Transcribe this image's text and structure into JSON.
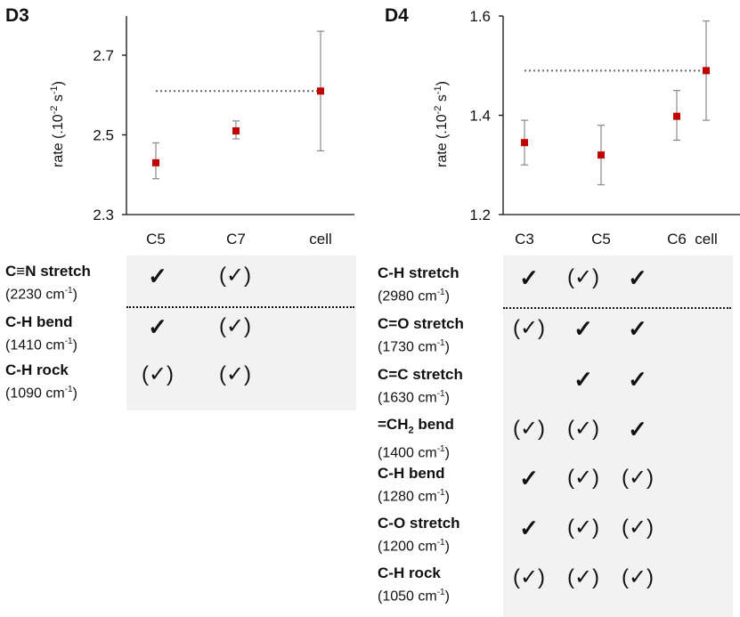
{
  "chart_data": [
    {
      "panel": "D3",
      "type": "scatter",
      "ylabel": "rate (.10",
      "ylabel_sup1": "-2",
      "ylabel_mid": " s",
      "ylabel_sup2": "-1",
      "ylabel_end": ")",
      "ylim": [
        2.3,
        2.7
      ],
      "yticks": [
        "2.3",
        "2.5",
        "2.7"
      ],
      "ytick_values": [
        2.3,
        2.5,
        2.7
      ],
      "ytop": 2.83,
      "categories": [
        "C5",
        "C7",
        "cell"
      ],
      "values": [
        2.43,
        2.51,
        2.61
      ],
      "err_low": [
        2.39,
        2.49,
        2.46
      ],
      "err_high": [
        2.48,
        2.535,
        2.76
      ],
      "reference": 2.61,
      "marker_color": "#c00000",
      "errorbar_color": "#888888"
    },
    {
      "panel": "D4",
      "type": "scatter",
      "ylabel": "rate (.10",
      "ylabel_sup1": "-2",
      "ylabel_mid": " s",
      "ylabel_sup2": "-1",
      "ylabel_end": ")",
      "ylim": [
        1.2,
        1.6
      ],
      "yticks": [
        "1.2",
        "1.4",
        "1.6"
      ],
      "ytick_values": [
        1.2,
        1.4,
        1.6
      ],
      "ytop": 1.6,
      "categories": [
        "C3",
        "C5",
        "C6",
        "cell"
      ],
      "values": [
        1.345,
        1.32,
        1.398,
        1.49
      ],
      "err_low": [
        1.3,
        1.26,
        1.35,
        1.39
      ],
      "err_high": [
        1.39,
        1.38,
        1.45,
        1.59
      ],
      "reference": 1.49,
      "marker_color": "#c00000",
      "errorbar_color": "#888888"
    }
  ],
  "tables": [
    {
      "panel": "D3",
      "modes": [
        {
          "name": "C≡N stretch",
          "wavenumber": "(2230 cm",
          "sup": "-1",
          "close": ")"
        },
        {
          "name": "C-H bend",
          "wavenumber": "(1410 cm",
          "sup": "-1",
          "close": ")"
        },
        {
          "name": "C-H rock",
          "wavenumber": "(1090 cm",
          "sup": "-1",
          "close": ")"
        }
      ],
      "marks": [
        [
          "✓",
          "(✓)"
        ],
        [
          "✓",
          "(✓)"
        ],
        [
          "(✓)",
          "(✓)"
        ]
      ]
    },
    {
      "panel": "D4",
      "modes": [
        {
          "name": "C-H stretch",
          "wavenumber": "(2980 cm",
          "sup": "-1",
          "close": ")"
        },
        {
          "name": "C=O stretch",
          "wavenumber": "(1730 cm",
          "sup": "-1",
          "close": ")"
        },
        {
          "name": "C=C stretch",
          "wavenumber": "(1630 cm",
          "sup": "-1",
          "close": ")"
        },
        {
          "name_pre": "=CH",
          "name_sub": "2",
          "name_post": " bend",
          "wavenumber": "(1400 cm",
          "sup": "-1",
          "close": ")"
        },
        {
          "name": "C-H bend",
          "wavenumber": "(1280 cm",
          "sup": "-1",
          "close": ")"
        },
        {
          "name": "C-O stretch",
          "wavenumber": "(1200 cm",
          "sup": "-1",
          "close": ")"
        },
        {
          "name": "C-H rock",
          "wavenumber": "(1050 cm",
          "sup": "-1",
          "close": ")"
        }
      ],
      "marks": [
        [
          "✓",
          "(✓)",
          "✓"
        ],
        [
          "(✓)",
          "✓",
          "✓"
        ],
        [
          "",
          "✓",
          "✓"
        ],
        [
          "(✓)",
          "(✓)",
          "✓"
        ],
        [
          "✓",
          "(✓)",
          "(✓)"
        ],
        [
          "✓",
          "(✓)",
          "(✓)"
        ],
        [
          "(✓)",
          "(✓)",
          "(✓)"
        ]
      ]
    }
  ]
}
